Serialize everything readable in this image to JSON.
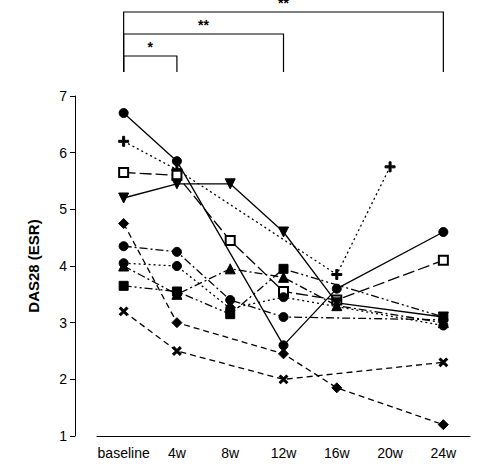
{
  "chart_data": {
    "type": "line",
    "y_label": "DAS28 (ESR)",
    "categories": [
      "baseline",
      "4w",
      "8w",
      "12w",
      "16w",
      "20w",
      "24w"
    ],
    "color": "#000000",
    "ylim": [
      1,
      7
    ],
    "yticks": [
      1,
      2,
      3,
      4,
      5,
      6,
      7
    ],
    "grid": false,
    "series": [
      {
        "marker": "circle",
        "line_style": "solid",
        "values": [
          6.7,
          5.85,
          null,
          2.6,
          3.6,
          null,
          4.6
        ]
      },
      {
        "marker": "plus",
        "line_style": "dotted",
        "values": [
          6.2,
          5.7,
          null,
          null,
          3.85,
          5.75,
          null
        ]
      },
      {
        "marker": "open_square",
        "line_style": "longdash",
        "values": [
          5.65,
          5.6,
          4.45,
          3.55,
          3.4,
          null,
          4.1
        ]
      },
      {
        "marker": "triangle_down",
        "line_style": "solid",
        "values": [
          5.2,
          5.45,
          5.45,
          4.6,
          3.35,
          null,
          3.1
        ]
      },
      {
        "marker": "diamond",
        "line_style": "dashed",
        "values": [
          4.75,
          3.0,
          null,
          2.45,
          1.85,
          null,
          1.2
        ]
      },
      {
        "marker": "circle",
        "line_style": "dashdot",
        "values": [
          4.35,
          4.25,
          3.4,
          3.1,
          null,
          null,
          3.05
        ]
      },
      {
        "marker": "triangle",
        "line_style": "dashdot",
        "values": [
          4.0,
          3.5,
          3.95,
          3.8,
          3.3,
          null,
          3.0
        ]
      },
      {
        "marker": "square",
        "line_style": "dashdotdot",
        "values": [
          3.65,
          3.55,
          3.15,
          3.95,
          null,
          null,
          3.1
        ]
      },
      {
        "marker": "x",
        "line_style": "dashed",
        "values": [
          3.2,
          2.5,
          null,
          2.0,
          null,
          null,
          2.3
        ]
      },
      {
        "marker": "circle",
        "line_style": "dotted",
        "values": [
          4.05,
          4.0,
          3.25,
          3.45,
          null,
          null,
          2.95
        ]
      }
    ],
    "annotations": [
      {
        "from": "baseline",
        "to": "4w",
        "text": "*"
      },
      {
        "from": "baseline",
        "to": "12w",
        "text": "**"
      },
      {
        "from": "baseline",
        "to": "24w",
        "text": "**"
      }
    ]
  }
}
